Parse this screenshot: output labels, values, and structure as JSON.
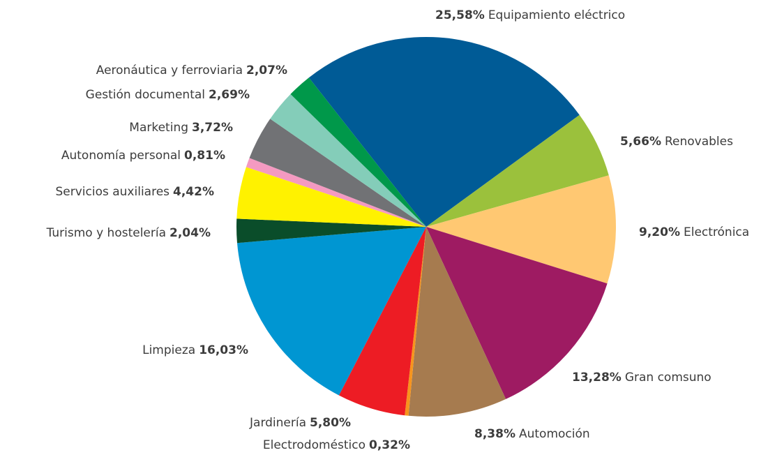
{
  "chart_data": {
    "type": "pie",
    "categories": [
      "Equipamiento eléctrico",
      "Renovables",
      "Electrónica",
      "Gran comsuno",
      "Automoción",
      "Electrodoméstico",
      "Jardinería",
      "Limpieza",
      "Turismo y hostelería",
      "Servicios auxiliares",
      "Autonomía personal",
      "Marketing",
      "Gestión documental",
      "Aeronáutica y ferroviaria"
    ],
    "values": [
      25.58,
      5.66,
      9.2,
      13.28,
      8.38,
      0.32,
      5.8,
      16.03,
      2.04,
      4.42,
      0.81,
      3.72,
      2.69,
      2.07
    ],
    "value_labels": [
      "25,58%",
      "5,66%",
      "9,20%",
      "13,28%",
      "8,38%",
      "0,32%",
      "5,80%",
      "16,03%",
      "2,04%",
      "4,42%",
      "0,81%",
      "3,72%",
      "2,69%",
      "2,07%"
    ],
    "colors": [
      "#005b96",
      "#9bc13c",
      "#ffc872",
      "#9e1b62",
      "#a67b4f",
      "#f7941d",
      "#ed1c24",
      "#0096d2",
      "#0a4d2a",
      "#fff200",
      "#f49ac1",
      "#717275",
      "#84cdb9",
      "#00984a"
    ]
  }
}
